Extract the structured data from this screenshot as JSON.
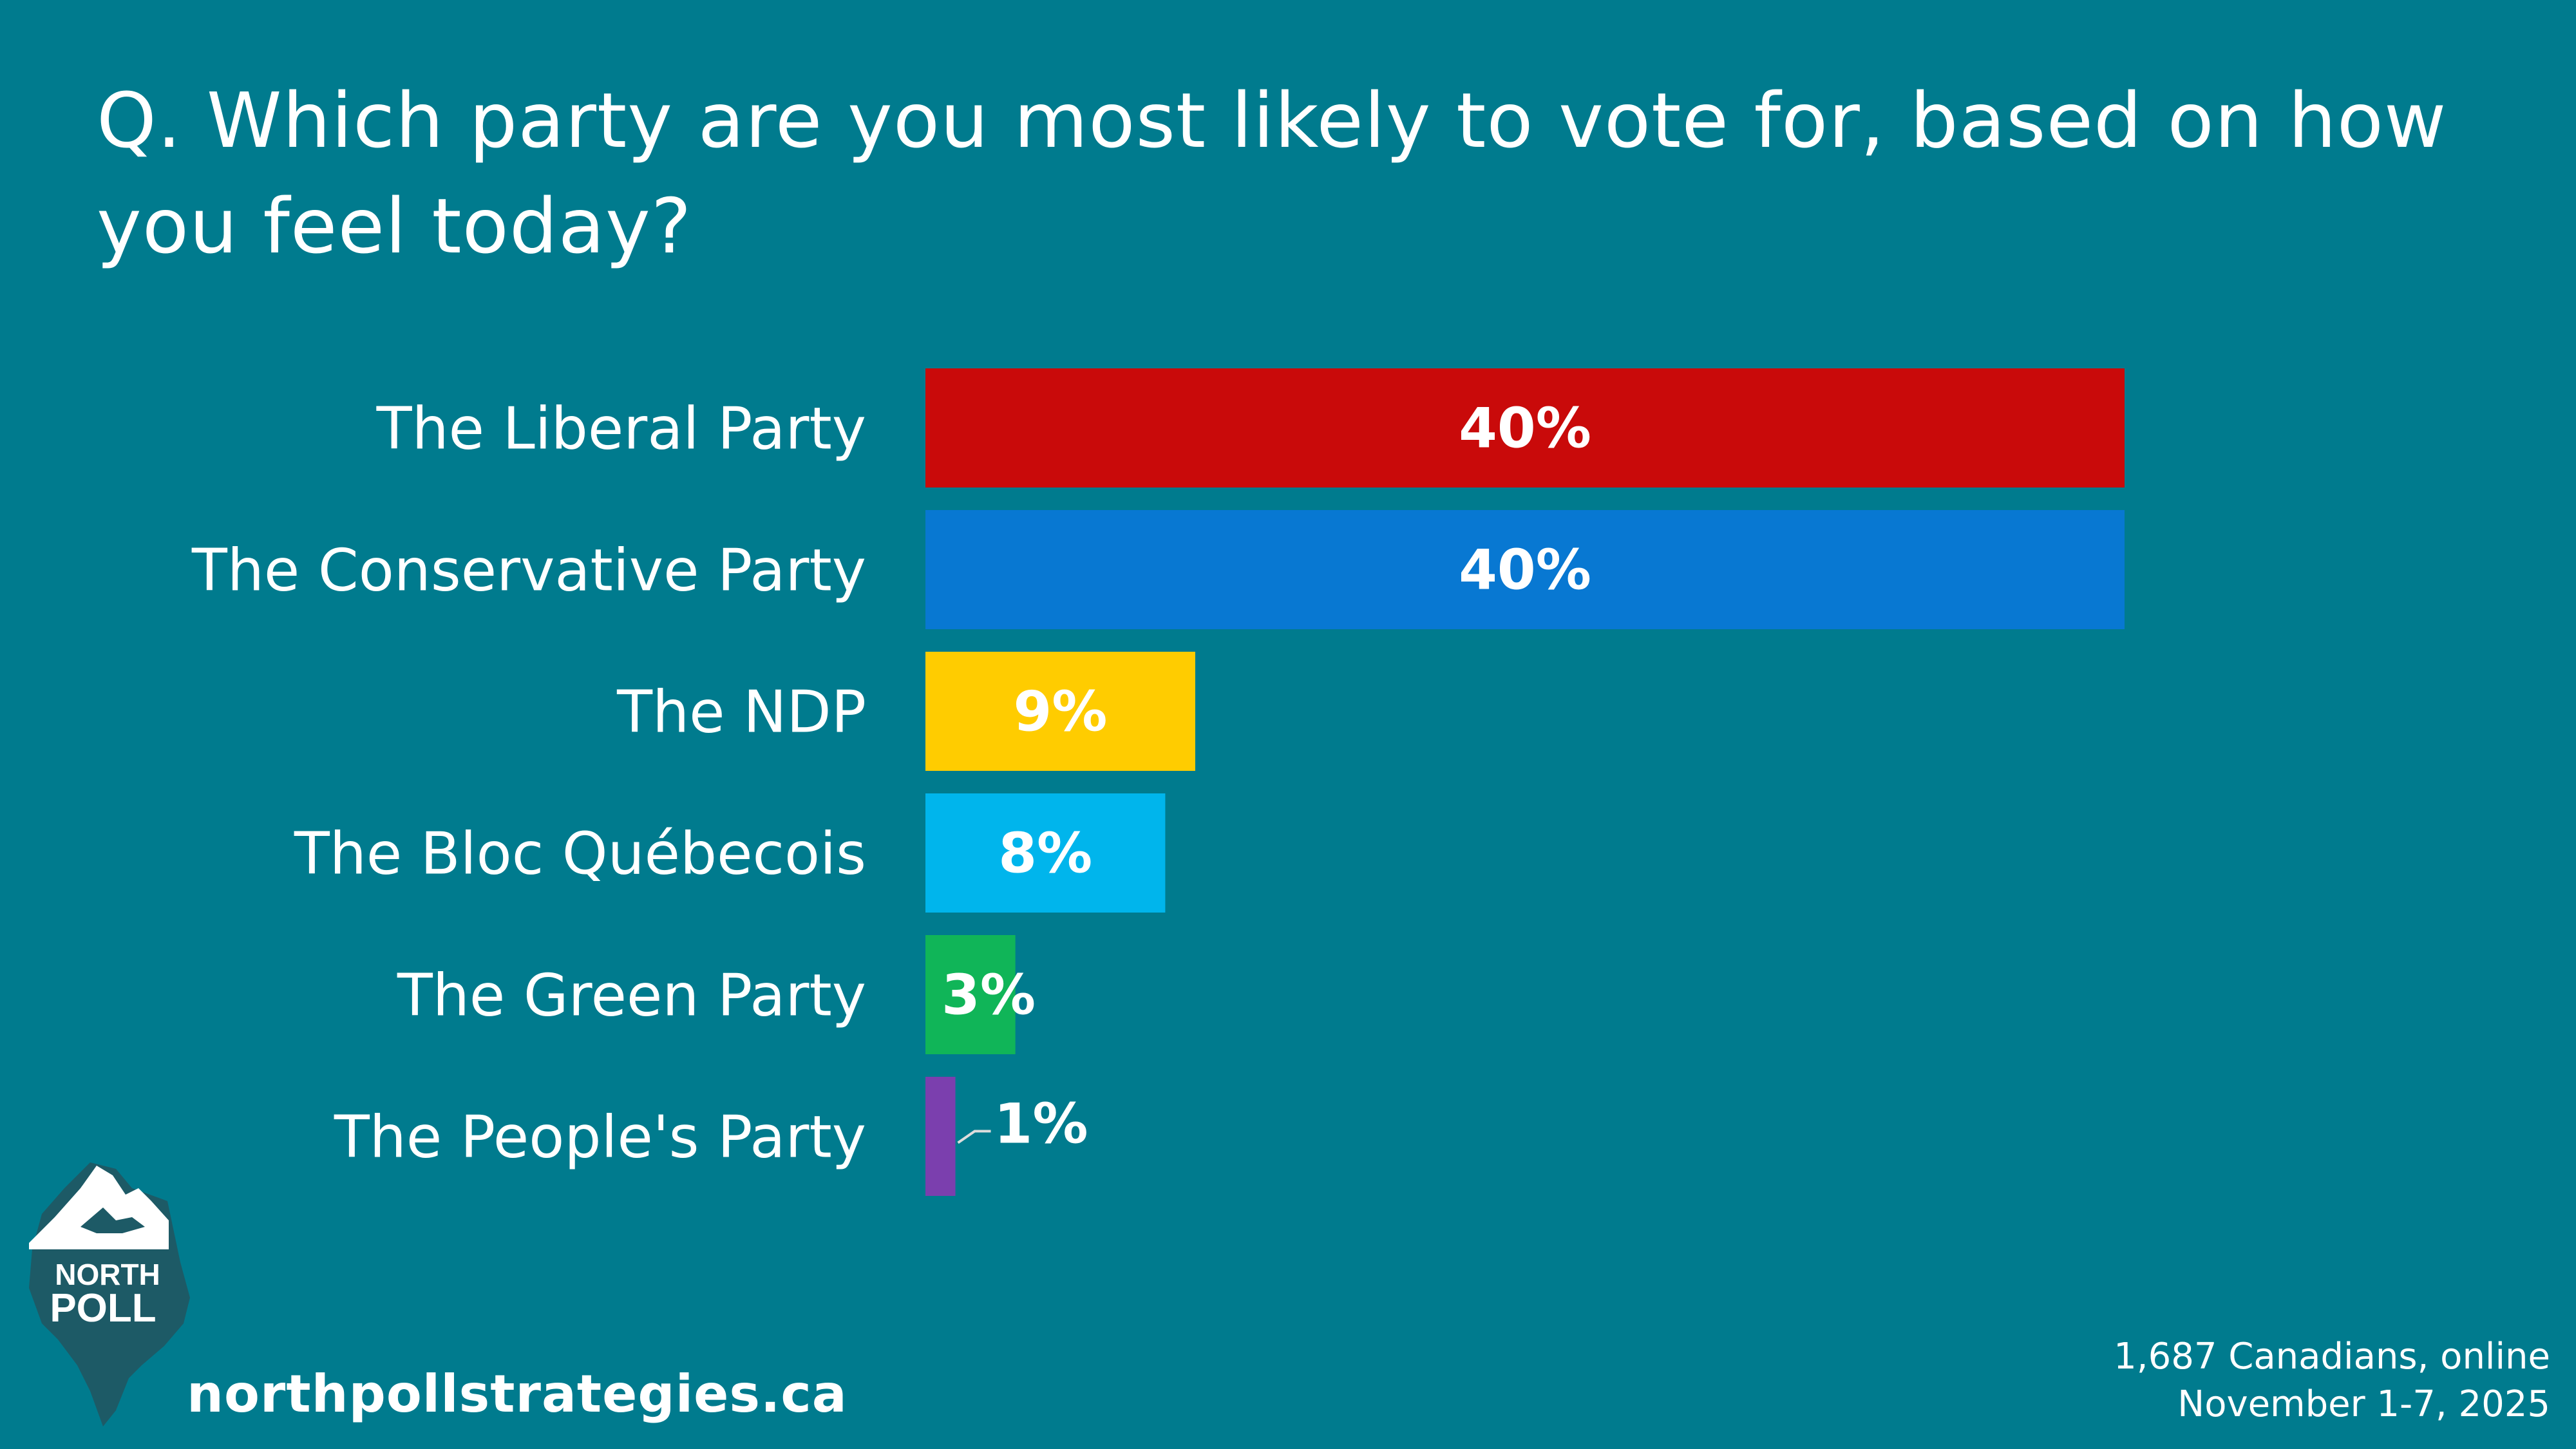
{
  "title": "Q. Which party are you most likely to vote for, based on how you feel today?",
  "chart_data": {
    "type": "bar",
    "orientation": "horizontal",
    "title": "Q. Which party are you most likely to vote for, based on how you feel today?",
    "categories": [
      "The Liberal Party",
      "The Conservative Party",
      "The NDP",
      "The Bloc Québecois",
      "The Green Party",
      "The People's Party"
    ],
    "values": [
      40,
      40,
      9,
      8,
      3,
      1
    ],
    "value_labels": [
      "40%",
      "40%",
      "9%",
      "8%",
      "3%",
      "1%"
    ],
    "colors": [
      "#c90a0a",
      "#0878d2",
      "#ffcc00",
      "#00b5ec",
      "#10b558",
      "#7b3fae"
    ],
    "xlim": [
      0,
      40
    ],
    "unit": "%",
    "grid": false
  },
  "logo": {
    "line1": "NORTH",
    "line2": "POLL"
  },
  "website": "northpollstrategies.ca",
  "footnote": {
    "sample": "1,687 Canadians, online",
    "dates": "November 1-7, 2025"
  }
}
